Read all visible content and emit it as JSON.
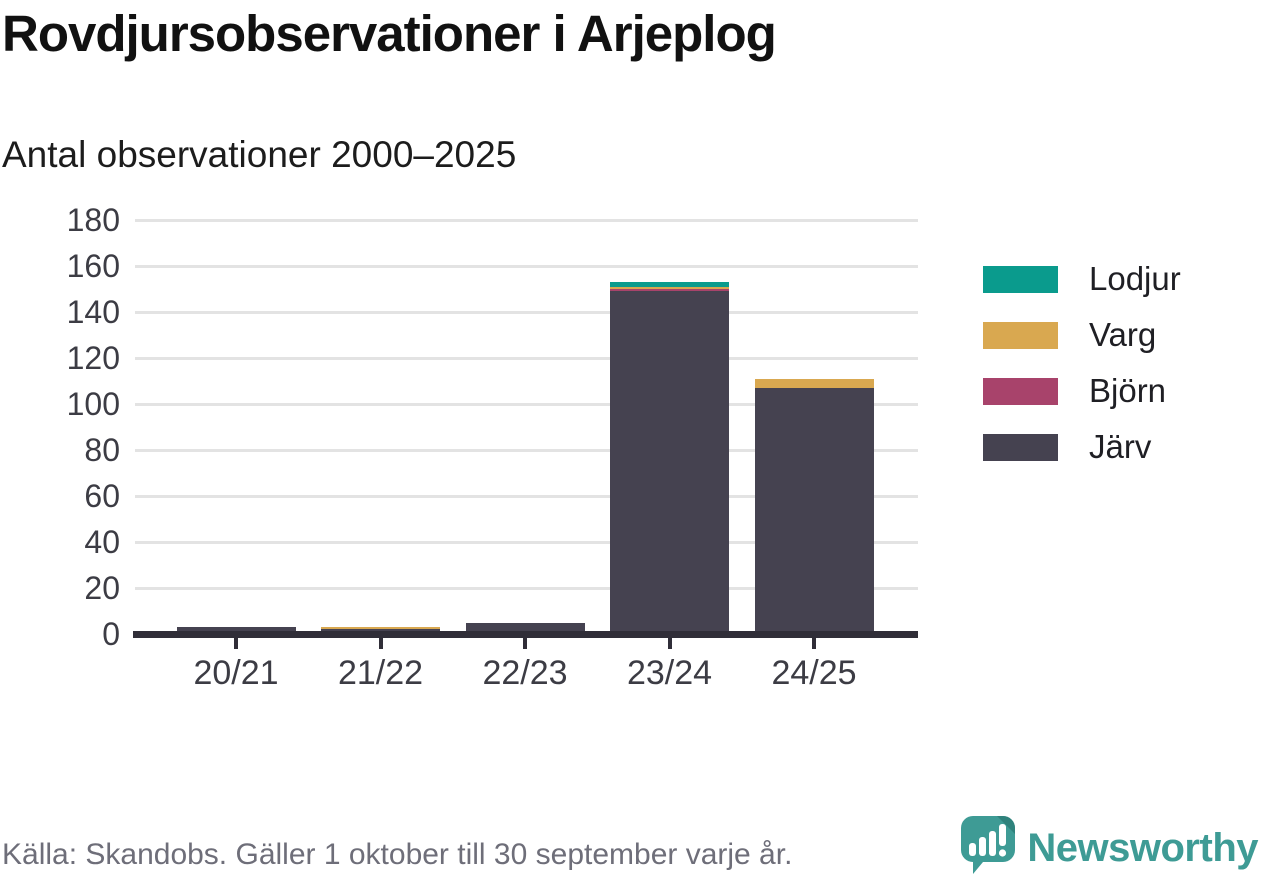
{
  "header": {
    "title": "Rovdjursobservationer i Arjeplog",
    "subtitle": "Antal observationer 2000–2025"
  },
  "footer": {
    "source": "Källa: Skandobs. Gäller 1 oktober till 30 september varje år.",
    "brand": "Newsworthy"
  },
  "colors": {
    "lodjur": "#0a9b8d",
    "varg": "#d9a850",
    "bjorn": "#a8436b",
    "jarv": "#454250",
    "axis": "#302e38",
    "grid": "#e3e3e3",
    "brand_teal": "#3e9b95",
    "brand_teal_dark": "#2f827c"
  },
  "chart_data": {
    "type": "bar",
    "stacked": true,
    "title": "Rovdjursobservationer i Arjeplog",
    "subtitle": "Antal observationer 2000–2025",
    "categories": [
      "20/21",
      "21/22",
      "22/23",
      "23/24",
      "24/25"
    ],
    "series": [
      {
        "name": "Järv",
        "color": "#454250",
        "values": [
          3,
          2,
          5,
          149,
          107
        ]
      },
      {
        "name": "Björn",
        "color": "#a8436b",
        "values": [
          0,
          0,
          0,
          1,
          0
        ]
      },
      {
        "name": "Varg",
        "color": "#d9a850",
        "values": [
          0,
          1,
          0,
          1,
          4
        ]
      },
      {
        "name": "Lodjur",
        "color": "#0a9b8d",
        "values": [
          0,
          0,
          0,
          2,
          0
        ]
      }
    ],
    "totals": [
      3,
      3,
      5,
      153,
      111
    ],
    "y_ticks": [
      0,
      20,
      40,
      60,
      80,
      100,
      120,
      140,
      160,
      180
    ],
    "ylim": [
      0,
      180
    ],
    "grid": true,
    "legend": [
      "Lodjur",
      "Varg",
      "Björn",
      "Järv"
    ],
    "legend_position": "right",
    "xlabel": "",
    "ylabel": ""
  }
}
